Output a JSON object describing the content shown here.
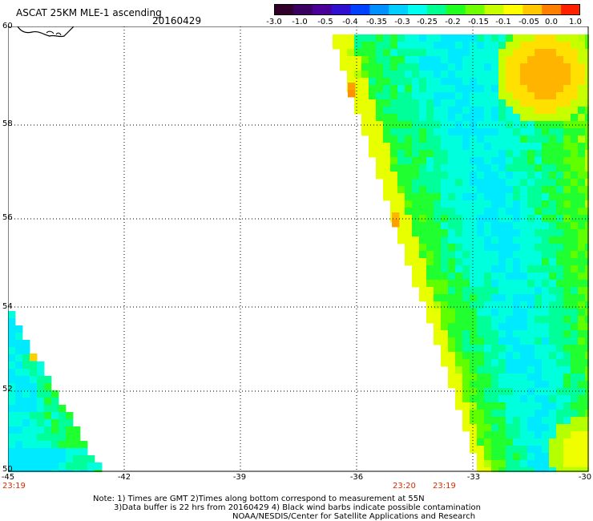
{
  "header": {
    "title": "ASCAT 25KM MLE-1 ascending",
    "date": "20160429"
  },
  "colorbar": {
    "labels": [
      "-3.0",
      "-1.0",
      "-0.5",
      "-0.4",
      "-0.35",
      "-0.3",
      "-0.25",
      "-0.2",
      "-0.15",
      "-0.1",
      "-0.05",
      "0.0",
      "1.0"
    ],
    "colors": [
      "#30002a",
      "#3a0060",
      "#4a0098",
      "#3010d0",
      "#0040ff",
      "#0090ff",
      "#00d0ff",
      "#00ffee",
      "#00ff90",
      "#20ff20",
      "#70ff00",
      "#c8ff00",
      "#ffff00",
      "#ffc800",
      "#ff8000",
      "#ff2000"
    ]
  },
  "axes": {
    "lat_labels": [
      "60",
      "58",
      "56",
      "54",
      "52",
      "50"
    ],
    "lon_labels": [
      "-45",
      "-42",
      "-39",
      "-36",
      "-33",
      "-30"
    ],
    "lat_range": [
      50,
      60
    ],
    "lon_range": [
      -45,
      -30
    ]
  },
  "times": {
    "t1": "23:19",
    "t2": "23:20",
    "t3": "23:19"
  },
  "notes": {
    "line1": "Note: 1) Times are GMT 2)Times along bottom correspond to measurement at 55N",
    "line2": "3)Data buffer is 22 hrs from 20160429 4) Black wind barbs indicate possible contamination",
    "line3": "NOAA/NESDIS/Center for Satellite Applications and Research"
  }
}
